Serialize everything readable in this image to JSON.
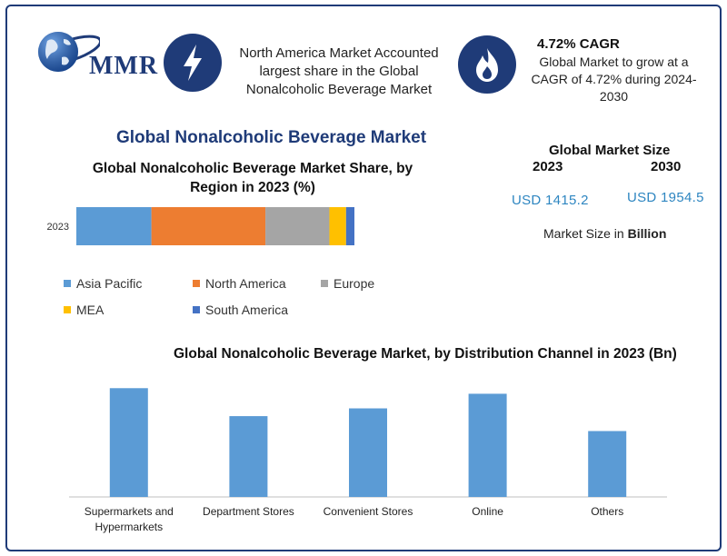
{
  "brand": {
    "name": "MMR"
  },
  "info_boxes": [
    {
      "text": "North America Market Accounted largest share in the Global Nonalcoholic Beverage Market",
      "icon": "lightning-icon"
    },
    {
      "title": "4.72% CAGR",
      "text": "Global Market to grow at a CAGR of 4.72% during 2024-2030",
      "icon": "flame-icon"
    }
  ],
  "main_title": "Global Nonalcoholic Beverage Market",
  "market_size": {
    "title": "Global Market Size",
    "year1": "2023",
    "year2": "2030",
    "value1": "USD 1415.2",
    "value2": "USD 1954.5",
    "unit_prefix": "Market Size in ",
    "unit_bold": "Billion"
  },
  "colors": {
    "navy": "#1f3b78",
    "asia_pacific": "#5b9bd5",
    "north_america": "#ed7d31",
    "europe": "#a5a5a5",
    "mea": "#ffc000",
    "south_america": "#4472c4"
  },
  "chart_data": [
    {
      "type": "bar",
      "orientation": "horizontal-stacked",
      "title": "Global Nonalcoholic Beverage Market Share, by Region in 2023 (%)",
      "categories": [
        "2023"
      ],
      "series": [
        {
          "name": "Asia Pacific",
          "values": [
            27
          ],
          "color": "#5b9bd5"
        },
        {
          "name": "North America",
          "values": [
            41
          ],
          "color": "#ed7d31"
        },
        {
          "name": "Europe",
          "values": [
            23
          ],
          "color": "#a5a5a5"
        },
        {
          "name": "MEA",
          "values": [
            6
          ],
          "color": "#ffc000"
        },
        {
          "name": "South America",
          "values": [
            3
          ],
          "color": "#4472c4"
        }
      ],
      "xlim": [
        0,
        100
      ],
      "legend": "bottom"
    },
    {
      "type": "bar",
      "title": "Global Nonalcoholic Beverage Market, by Distribution Channel  in 2023 (Bn)",
      "categories": [
        "Supermarkets and Hypermarkets",
        "Department Stores",
        "Convenient Stores",
        "Online",
        "Others"
      ],
      "values": [
        350,
        260,
        285,
        332,
        212
      ],
      "color": "#5b9bd5",
      "ylim": [
        0,
        380
      ],
      "grid": false
    }
  ]
}
